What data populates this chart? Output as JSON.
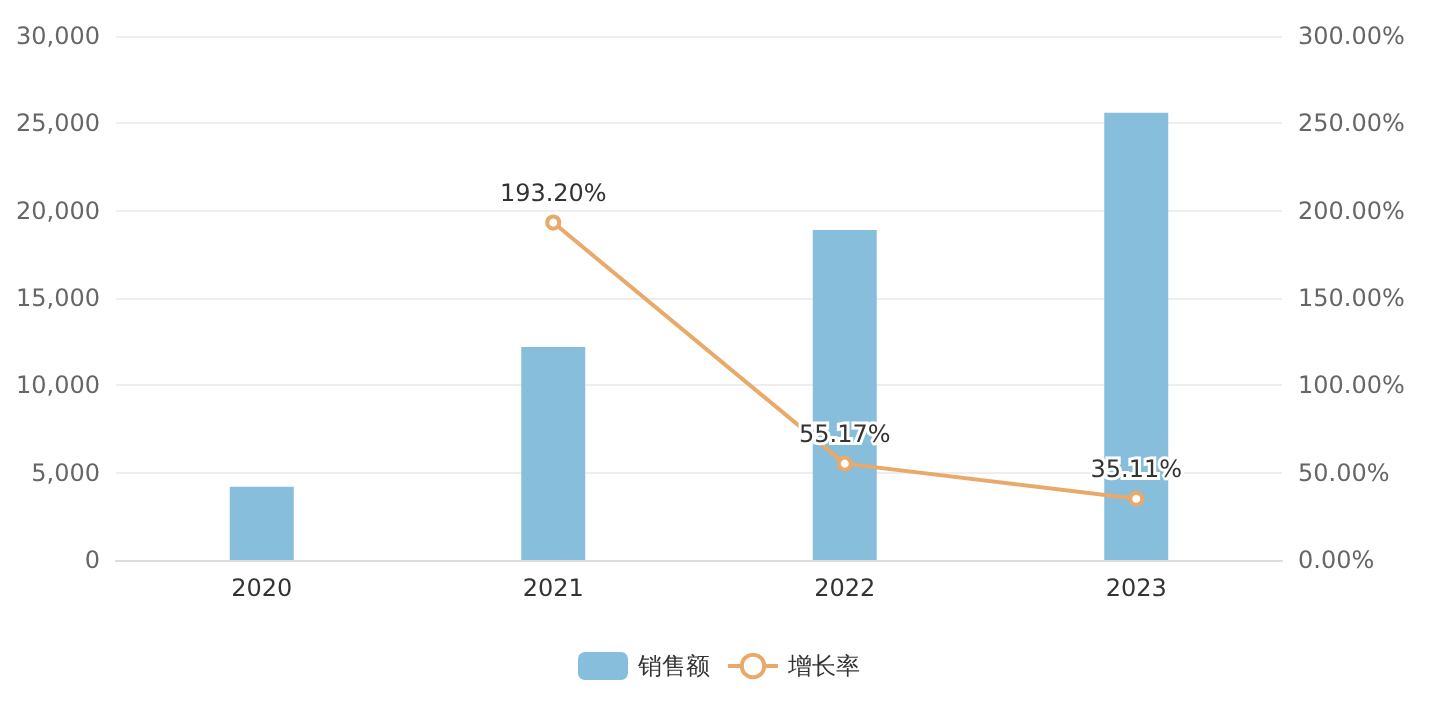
{
  "chart_data": {
    "type": "bar",
    "categories": [
      "2020",
      "2021",
      "2022",
      "2023"
    ],
    "series": [
      {
        "name": "销售额",
        "color": "#86bedb",
        "values": [
          4200,
          12200,
          18900,
          25600
        ]
      },
      {
        "name": "增长率",
        "type": "line",
        "axis": "y2",
        "color": "#e9a96a",
        "marker": "circle",
        "values": [
          null,
          193.2,
          55.17,
          35.11
        ],
        "value_labels": [
          null,
          "193.20%",
          "55.17%",
          "35.11%"
        ]
      }
    ],
    "ylim": [
      0,
      30000
    ],
    "yticks": [
      {
        "value": 0,
        "label": "0"
      },
      {
        "value": 5000,
        "label": "5,000"
      },
      {
        "value": 10000,
        "label": "10,000"
      },
      {
        "value": 15000,
        "label": "15,000"
      },
      {
        "value": 20000,
        "label": "20,000"
      },
      {
        "value": 25000,
        "label": "25,000"
      },
      {
        "value": 30000,
        "label": "30,000"
      }
    ],
    "y2lim": [
      0,
      300
    ],
    "y2ticks": [
      {
        "value": 0,
        "label": "0.00%"
      },
      {
        "value": 50,
        "label": "50.00%"
      },
      {
        "value": 100,
        "label": "100.00%"
      },
      {
        "value": 150,
        "label": "150.00%"
      },
      {
        "value": 200,
        "label": "200.00%"
      },
      {
        "value": 250,
        "label": "250.00%"
      },
      {
        "value": 300,
        "label": "300.00%"
      }
    ],
    "grid": "y",
    "legend": "bottom"
  }
}
